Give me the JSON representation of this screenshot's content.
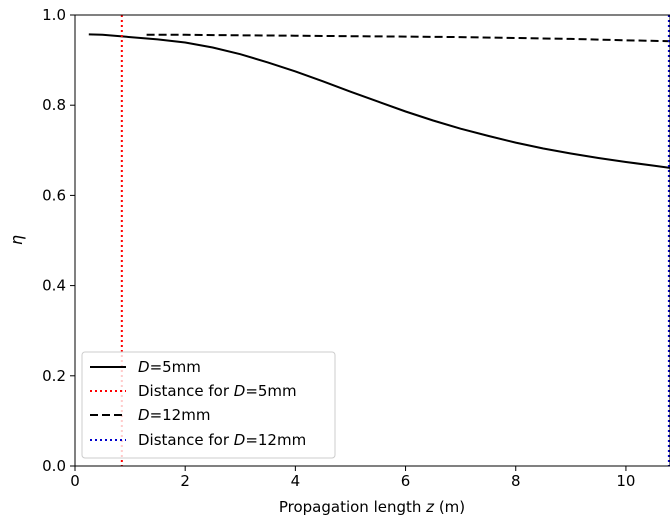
{
  "chart_data": {
    "type": "line",
    "title": "",
    "xlabel": {
      "prefix": "Propagation length ",
      "var": "z",
      "suffix": " (m)"
    },
    "ylabel": "η",
    "xlim": [
      0,
      10.8
    ],
    "ylim": [
      0,
      1.0
    ],
    "xticks": [
      0,
      2,
      4,
      6,
      8,
      10
    ],
    "yticks": [
      0.0,
      0.2,
      0.4,
      0.6,
      0.8,
      1.0
    ],
    "xtick_labels": [
      "0",
      "2",
      "4",
      "6",
      "8",
      "10"
    ],
    "ytick_labels": [
      "0.0",
      "0.2",
      "0.4",
      "0.6",
      "0.8",
      "1.0"
    ],
    "grid": false,
    "legend_position": "lower-left",
    "series": [
      {
        "legend": {
          "var": "D",
          "text": "=5mm"
        },
        "style": "solid",
        "color": "#000000",
        "x": [
          0.25,
          0.5,
          1.0,
          1.5,
          2.0,
          2.5,
          3.0,
          3.5,
          4.0,
          4.5,
          5.0,
          5.5,
          6.0,
          6.5,
          7.0,
          7.5,
          8.0,
          8.5,
          9.0,
          9.5,
          10.0,
          10.5,
          10.8
        ],
        "y": [
          0.957,
          0.956,
          0.951,
          0.946,
          0.939,
          0.928,
          0.913,
          0.895,
          0.875,
          0.853,
          0.83,
          0.808,
          0.786,
          0.766,
          0.748,
          0.732,
          0.717,
          0.704,
          0.693,
          0.683,
          0.674,
          0.666,
          0.661
        ]
      },
      {
        "legend": {
          "prefix": "Distance for ",
          "var": "D",
          "text": "=5mm"
        },
        "style": "dotted",
        "color": "#ff0000",
        "vline": 0.85
      },
      {
        "legend": {
          "var": "D",
          "text": "=12mm"
        },
        "style": "dashed",
        "color": "#000000",
        "x": [
          1.3,
          2.0,
          3.0,
          4.0,
          5.0,
          6.0,
          7.0,
          8.0,
          9.0,
          10.0,
          10.8
        ],
        "y": [
          0.956,
          0.956,
          0.955,
          0.954,
          0.953,
          0.952,
          0.951,
          0.949,
          0.947,
          0.944,
          0.942
        ]
      },
      {
        "legend": {
          "prefix": "Distance for ",
          "var": "D",
          "text": "=12mm"
        },
        "style": "dotted",
        "color": "#0000cc",
        "vline": 10.78
      }
    ]
  }
}
